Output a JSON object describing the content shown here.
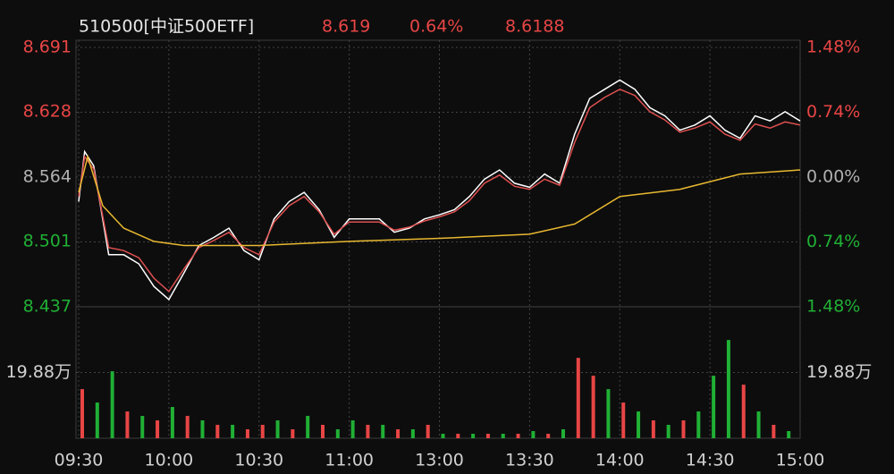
{
  "chart_data": {
    "type": "intraday",
    "title": "510500[中证500ETF]",
    "header_values": [
      "8.619",
      "0.64%",
      "8.6188"
    ],
    "xlim": [
      0,
      240
    ],
    "xticks": [
      {
        "value": 0,
        "label": "09:30"
      },
      {
        "value": 30,
        "label": "10:00"
      },
      {
        "value": 60,
        "label": "10:30"
      },
      {
        "value": 90,
        "label": "11:00"
      },
      {
        "value": 120,
        "label": "13:00"
      },
      {
        "value": 150,
        "label": "13:30"
      },
      {
        "value": 180,
        "label": "14:00"
      },
      {
        "value": 210,
        "label": "14:30"
      },
      {
        "value": 240,
        "label": "15:00"
      }
    ],
    "ylim": [
      8.437,
      8.691
    ],
    "yticks": [
      8.437,
      8.501,
      8.564,
      8.628,
      8.691
    ],
    "y2lim": [
      -1.48,
      1.48
    ],
    "y2ticks": [
      {
        "value": -1.48,
        "label": "1.48%"
      },
      {
        "value": -0.74,
        "label": "0.74%"
      },
      {
        "value": 0,
        "label": "0.00%"
      },
      {
        "value": 0.74,
        "label": "0.74%"
      },
      {
        "value": 1.48,
        "label": "1.48%"
      }
    ],
    "up_color": "#e84545",
    "down_color": "#20b035",
    "flat_color": "#b0b0b0",
    "series": [
      {
        "color": "#ffffff",
        "x": [
          0,
          2,
          5,
          10,
          15,
          20,
          25,
          30,
          35,
          40,
          45,
          50,
          55,
          60,
          65,
          70,
          75,
          80,
          85,
          90,
          95,
          100,
          105,
          110,
          115,
          120,
          125,
          130,
          135,
          140,
          145,
          150,
          155,
          160,
          165,
          170,
          175,
          180,
          185,
          190,
          195,
          200,
          205,
          210,
          215,
          220,
          225,
          230,
          235,
          240
        ],
        "values": [
          8.54,
          8.589,
          8.575,
          8.488,
          8.488,
          8.479,
          8.457,
          8.444,
          8.47,
          8.497,
          8.505,
          8.514,
          8.492,
          8.483,
          8.523,
          8.54,
          8.549,
          8.532,
          8.505,
          8.523,
          8.523,
          8.523,
          8.51,
          8.514,
          8.523,
          8.527,
          8.532,
          8.545,
          8.562,
          8.571,
          8.558,
          8.554,
          8.567,
          8.558,
          8.606,
          8.641,
          8.65,
          8.659,
          8.65,
          8.632,
          8.624,
          8.61,
          8.615,
          8.624,
          8.61,
          8.602,
          8.624,
          8.619,
          8.628,
          8.619
        ]
      },
      {
        "color": "#e05050",
        "x": [
          0,
          2,
          5,
          10,
          15,
          20,
          25,
          30,
          35,
          40,
          45,
          50,
          55,
          60,
          65,
          70,
          75,
          80,
          85,
          90,
          95,
          100,
          105,
          110,
          115,
          120,
          125,
          130,
          135,
          140,
          145,
          150,
          155,
          160,
          165,
          170,
          175,
          180,
          185,
          190,
          195,
          200,
          205,
          210,
          215,
          220,
          225,
          230,
          235,
          240
        ],
        "values": [
          8.545,
          8.584,
          8.572,
          8.495,
          8.492,
          8.485,
          8.465,
          8.452,
          8.474,
          8.495,
          8.502,
          8.51,
          8.495,
          8.488,
          8.52,
          8.536,
          8.545,
          8.53,
          8.508,
          8.52,
          8.52,
          8.52,
          8.512,
          8.515,
          8.521,
          8.525,
          8.53,
          8.541,
          8.558,
          8.566,
          8.555,
          8.552,
          8.562,
          8.556,
          8.598,
          8.632,
          8.642,
          8.65,
          8.644,
          8.628,
          8.62,
          8.608,
          8.612,
          8.618,
          8.606,
          8.6,
          8.616,
          8.612,
          8.618,
          8.615
        ]
      },
      {
        "color": "#e8b830",
        "x": [
          0,
          3,
          8,
          15,
          25,
          35,
          60,
          90,
          120,
          150,
          165,
          180,
          200,
          220,
          240
        ],
        "values": [
          8.549,
          8.584,
          8.536,
          8.514,
          8.501,
          8.497,
          8.497,
          8.501,
          8.504,
          8.508,
          8.518,
          8.545,
          8.552,
          8.567,
          8.571
        ]
      }
    ],
    "volume": {
      "vlim": [
        0,
        397600
      ],
      "vticks": [
        {
          "value": 198800,
          "label": "19.88万"
        }
      ],
      "x": [
        0,
        5,
        10,
        15,
        20,
        25,
        30,
        35,
        40,
        45,
        50,
        55,
        60,
        65,
        70,
        75,
        80,
        85,
        90,
        95,
        100,
        105,
        110,
        115,
        120,
        125,
        130,
        135,
        140,
        145,
        150,
        155,
        160,
        165,
        170,
        175,
        180,
        185,
        190,
        195,
        200,
        205,
        210,
        215,
        220,
        225,
        230,
        235
      ],
      "values": [
        148500,
        108000,
        202500,
        81000,
        67500,
        54000,
        94500,
        67500,
        54000,
        40500,
        40500,
        27000,
        40500,
        54000,
        27000,
        67500,
        40500,
        27000,
        54000,
        40500,
        40500,
        27000,
        27000,
        40500,
        13500,
        13500,
        13500,
        13500,
        13500,
        13500,
        21600,
        13500,
        27000,
        243000,
        189000,
        148500,
        108000,
        81000,
        54000,
        40500,
        54000,
        81000,
        189000,
        297000,
        162000,
        81000,
        40500,
        21600
      ],
      "colors": [
        "#e84545",
        "#20b035",
        "#20b035",
        "#e84545",
        "#20b035",
        "#e84545",
        "#20b035",
        "#e84545",
        "#20b035",
        "#e84545",
        "#20b035",
        "#e84545",
        "#e84545",
        "#20b035",
        "#e84545",
        "#20b035",
        "#e84545",
        "#20b035",
        "#20b035",
        "#e84545",
        "#20b035",
        "#e84545",
        "#20b035",
        "#e84545",
        "#20b035",
        "#e84545",
        "#20b035",
        "#e84545",
        "#20b035",
        "#e84545",
        "#20b035",
        "#e84545",
        "#20b035",
        "#e84545",
        "#e84545",
        "#20b035",
        "#e84545",
        "#20b035",
        "#e84545",
        "#20b035",
        "#e84545",
        "#20b035",
        "#20b035",
        "#20b035",
        "#e84545",
        "#20b035",
        "#e84545",
        "#20b035"
      ]
    }
  }
}
